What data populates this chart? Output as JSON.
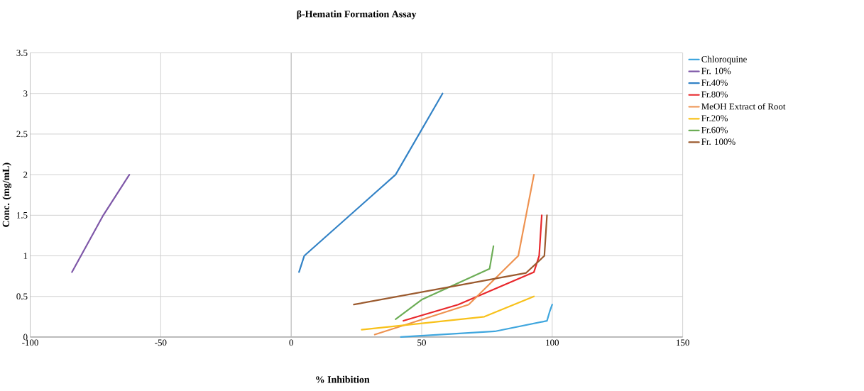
{
  "chart_data": {
    "type": "line",
    "title": "β-Hematin Formation Assay",
    "xlabel": "% Inhibition",
    "ylabel": "Conc. (mg/mL)",
    "xlim": [
      -100,
      150
    ],
    "ylim": [
      0,
      3.5
    ],
    "xticks": [
      -100,
      -50,
      0,
      50,
      100,
      150
    ],
    "yticks": [
      0,
      0.5,
      1,
      1.5,
      2,
      2.5,
      3,
      3.5
    ],
    "grid": true,
    "legend": "right",
    "marker": "none",
    "line_style": "solid",
    "series": [
      {
        "name": "Chloroquine",
        "color": "#3fa6de",
        "x": [
          42,
          78,
          98,
          99,
          100
        ],
        "values": [
          0,
          0.07,
          0.2,
          0.31,
          0.4
        ]
      },
      {
        "name": "Fr. 10%",
        "color": "#7e57a8",
        "x": [
          -84,
          -72,
          -62
        ],
        "values": [
          0.8,
          1.5,
          2
        ]
      },
      {
        "name": "Fr.40%",
        "color": "#3282c6",
        "x": [
          3,
          5,
          40,
          58
        ],
        "values": [
          0.8,
          1,
          2,
          3
        ]
      },
      {
        "name": "Fr.80%",
        "color": "#e8272b",
        "x": [
          43,
          64,
          93,
          95,
          96
        ],
        "values": [
          0.2,
          0.4,
          0.8,
          1,
          1.5
        ]
      },
      {
        "name": "MeOH Extract of Root",
        "color": "#ee9250",
        "x": [
          32,
          68,
          87,
          90,
          93
        ],
        "values": [
          0.03,
          0.4,
          1,
          1.5,
          2
        ]
      },
      {
        "name": "Fr.20%",
        "color": "#f8c11a",
        "x": [
          27,
          74,
          93
        ],
        "values": [
          0.09,
          0.25,
          0.5
        ]
      },
      {
        "name": "Fr.60%",
        "color": "#6cad56",
        "x": [
          40,
          50,
          76,
          77.5
        ],
        "values": [
          0.22,
          0.46,
          0.84,
          1.12
        ]
      },
      {
        "name": "Fr. 100%",
        "color": "#9b5a2e",
        "x": [
          24,
          90,
          97,
          98
        ],
        "values": [
          0.4,
          0.79,
          1,
          1.5
        ]
      }
    ]
  }
}
